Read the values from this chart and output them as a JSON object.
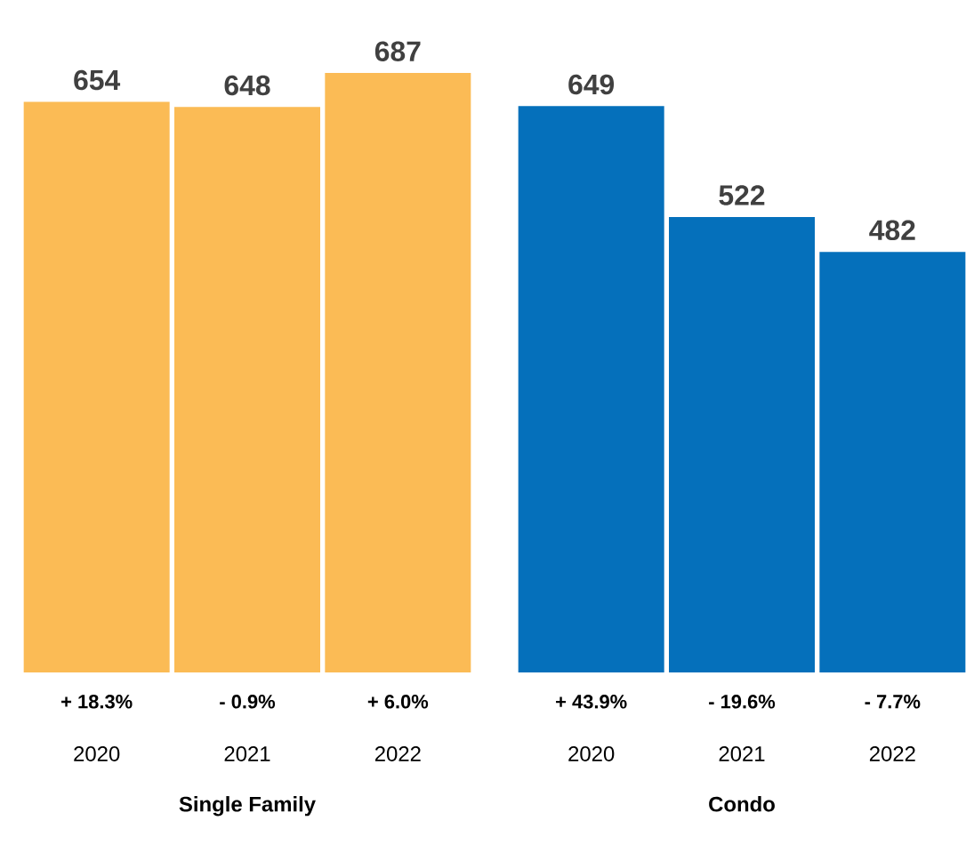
{
  "chart_data": [
    {
      "type": "bar",
      "xlabel": "Single Family",
      "categories": [
        "2020",
        "2021",
        "2022"
      ],
      "values": [
        654,
        648,
        687
      ],
      "color": "#fbbb55",
      "data_labels": true,
      "tick_labels": "x",
      "annotations": [
        "+ 18.3%",
        "- 0.9%",
        "+ 6.0%"
      ]
    },
    {
      "type": "bar",
      "xlabel": "Condo",
      "categories": [
        "2020",
        "2021",
        "2022"
      ],
      "values": [
        649,
        522,
        482
      ],
      "color": "#0570bb",
      "data_labels": true,
      "tick_labels": "x",
      "annotations": [
        "+ 43.9%",
        "- 19.6%",
        "- 7.7%"
      ]
    }
  ]
}
